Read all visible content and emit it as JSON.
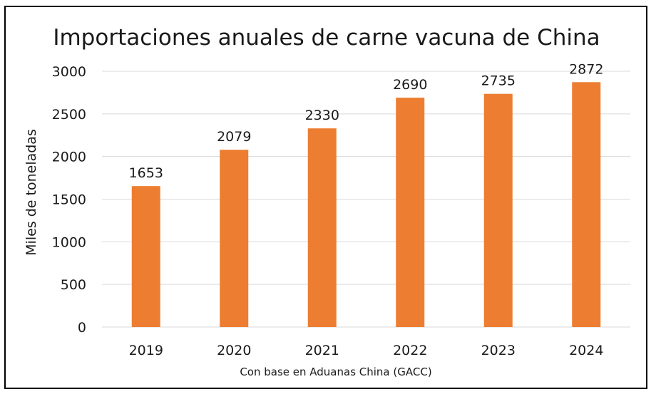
{
  "chart_data": {
    "type": "bar",
    "title": "Importaciones anuales de carne vacuna de China",
    "ylabel": "Miles de toneladas",
    "xlabel": "",
    "source_note": "Con base en Aduanas China (GACC)",
    "categories": [
      "2019",
      "2020",
      "2021",
      "2022",
      "2023",
      "2024"
    ],
    "values": [
      1653,
      2079,
      2330,
      2690,
      2735,
      2872
    ],
    "data_labels": [
      "1653",
      "2079",
      "2330",
      "2690",
      "2735",
      "2872"
    ],
    "ylim": [
      0,
      3000
    ],
    "yticks": [
      0,
      500,
      1000,
      1500,
      2000,
      2500,
      3000
    ],
    "grid": true,
    "legend": "none",
    "bar_color": "#ED7D31",
    "grid_color": "#D9D9D9"
  }
}
